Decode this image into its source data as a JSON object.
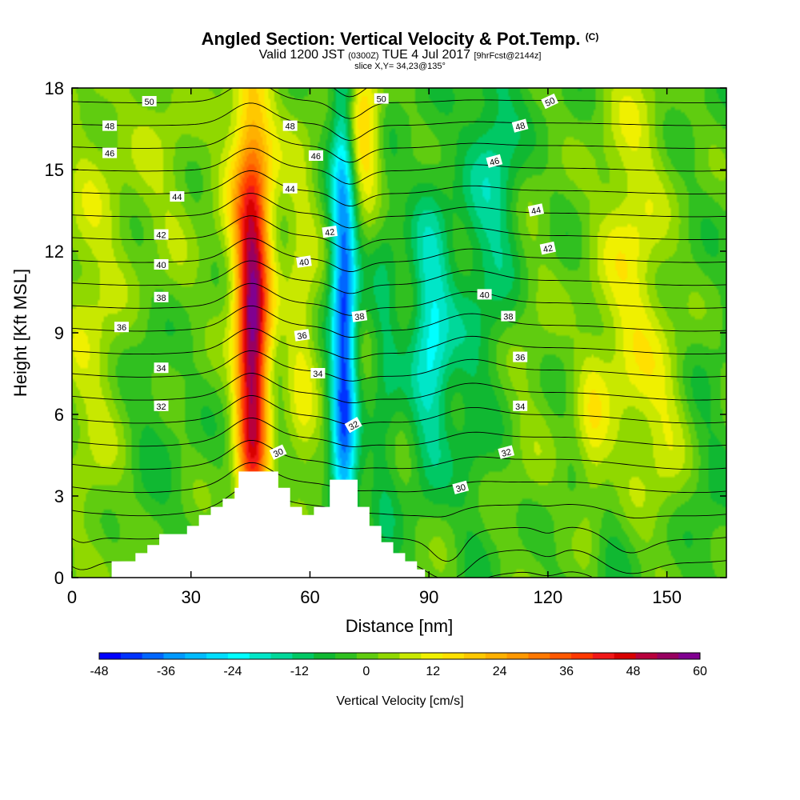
{
  "title": {
    "main": "Angled Section: Vertical Velocity & Pot.Temp.",
    "main_unit": "(C)",
    "valid_a": "Valid 1200 JST",
    "valid_b": "(0300Z)",
    "valid_c": "TUE 4 Jul 2017",
    "valid_d": "[9hrFcst@2144z]",
    "slice": "slice X,Y= 34,23@135°"
  },
  "chart_data": {
    "type": "heatmap",
    "xlabel": "Distance [nm]",
    "ylabel": "Height [Kft MSL]",
    "xlim": [
      0,
      165
    ],
    "ylim": [
      0,
      18
    ],
    "x_ticks": [
      0,
      30,
      60,
      90,
      120,
      150
    ],
    "y_ticks": [
      0,
      3,
      6,
      9,
      12,
      15,
      18
    ],
    "colorbar": {
      "label": "Vertical Velocity [cm/s]",
      "min": -48,
      "max": 60,
      "step": 4,
      "tick_values": [
        -48,
        -36,
        -24,
        -12,
        0,
        12,
        24,
        36,
        48,
        60
      ],
      "colors": [
        "#0000ff",
        "#0033ff",
        "#0066ff",
        "#0099ff",
        "#00bbff",
        "#00ddff",
        "#00ffff",
        "#00e6c8",
        "#00d89a",
        "#00c864",
        "#10b832",
        "#30c020",
        "#60cc10",
        "#90d800",
        "#c8e800",
        "#f0f000",
        "#ffe000",
        "#ffc800",
        "#ffb000",
        "#ff9800",
        "#ff7800",
        "#ff5800",
        "#ff3800",
        "#f01818",
        "#d80000",
        "#b8003c",
        "#980060",
        "#800090"
      ]
    },
    "background_field_color": "#a8dc00",
    "velocity_features": [
      {
        "x": 45.5,
        "y": 8.0,
        "sx": 2.8,
        "sy": 4.8,
        "value": 58
      },
      {
        "x": 45.0,
        "y": 14.5,
        "sx": 5.0,
        "sy": 3.5,
        "value": 20
      },
      {
        "x": 68.5,
        "y": 9.0,
        "sx": 2.2,
        "sy": 7.5,
        "value": -42
      },
      {
        "x": 73.5,
        "y": 16.5,
        "sx": 3.5,
        "sy": 2.0,
        "value": 22
      },
      {
        "x": 58.0,
        "y": 9.0,
        "sx": 3.0,
        "sy": 5.5,
        "value": 12
      },
      {
        "x": 79.0,
        "y": 8.0,
        "sx": 2.5,
        "sy": 6.0,
        "value": -8
      },
      {
        "x": 90.5,
        "y": 9.0,
        "sx": 3.5,
        "sy": 3.5,
        "value": -22
      },
      {
        "x": 107.0,
        "y": 14.5,
        "sx": 5.0,
        "sy": 4.0,
        "value": -14
      },
      {
        "x": 100.0,
        "y": 6.0,
        "sx": 4.0,
        "sy": 5.0,
        "value": -6
      },
      {
        "x": 115.0,
        "y": 9.0,
        "sx": 5.0,
        "sy": 6.0,
        "value": 5
      },
      {
        "x": 141.0,
        "y": 11.0,
        "sx": 6.0,
        "sy": 6.5,
        "value": 14
      },
      {
        "x": 131.0,
        "y": 4.5,
        "sx": 3.0,
        "sy": 3.0,
        "value": 12
      },
      {
        "x": 5.0,
        "y": 10.0,
        "sx": 6.0,
        "sy": 7.0,
        "value": 10
      },
      {
        "x": 22.0,
        "y": 14.0,
        "sx": 6.0,
        "sy": 4.0,
        "value": 10
      },
      {
        "x": 20.0,
        "y": 9.0,
        "sx": 5.0,
        "sy": 5.0,
        "value": -6
      },
      {
        "x": 135.0,
        "y": 1.5,
        "sx": 6.0,
        "sy": 2.0,
        "value": -8
      },
      {
        "x": 160.0,
        "y": 3.0,
        "sx": 4.0,
        "sy": 4.0,
        "value": -4
      },
      {
        "x": 95.0,
        "y": 1.5,
        "sx": 4.0,
        "sy": 1.8,
        "value": 3
      },
      {
        "x": 150.0,
        "y": 5.5,
        "sx": 4.0,
        "sy": 2.5,
        "value": 8
      }
    ],
    "terrain_profile": [
      [
        0,
        0
      ],
      [
        10,
        0
      ],
      [
        10,
        0.6
      ],
      [
        16,
        0.6
      ],
      [
        16,
        0.9
      ],
      [
        19,
        0.9
      ],
      [
        19,
        1.2
      ],
      [
        22,
        1.2
      ],
      [
        22,
        1.6
      ],
      [
        29,
        1.6
      ],
      [
        29,
        1.9
      ],
      [
        32,
        1.9
      ],
      [
        32,
        2.3
      ],
      [
        35,
        2.3
      ],
      [
        35,
        2.6
      ],
      [
        38,
        2.6
      ],
      [
        38,
        2.9
      ],
      [
        41,
        2.9
      ],
      [
        41,
        3.3
      ],
      [
        42,
        3.3
      ],
      [
        42,
        3.9
      ],
      [
        52,
        3.9
      ],
      [
        52,
        3.3
      ],
      [
        55,
        3.3
      ],
      [
        55,
        2.6
      ],
      [
        58,
        2.6
      ],
      [
        58,
        2.3
      ],
      [
        61,
        2.3
      ],
      [
        61,
        2.6
      ],
      [
        65,
        2.6
      ],
      [
        65,
        3.6
      ],
      [
        72,
        3.6
      ],
      [
        72,
        2.6
      ],
      [
        75,
        2.6
      ],
      [
        75,
        1.9
      ],
      [
        78,
        1.9
      ],
      [
        78,
        1.3
      ],
      [
        81,
        1.3
      ],
      [
        81,
        0.9
      ],
      [
        84,
        0.9
      ],
      [
        84,
        0.6
      ],
      [
        87,
        0.6
      ],
      [
        87,
        0.3
      ],
      [
        89,
        0.3
      ],
      [
        89,
        0
      ]
    ],
    "theta_contours": {
      "min": 29,
      "max": 51,
      "step": 1,
      "labeled_levels": [
        30,
        32,
        34,
        36,
        38,
        40,
        42,
        44,
        46,
        48,
        50
      ]
    },
    "contour_labels": [
      {
        "text": "50",
        "x": 19.5,
        "y": 17.5,
        "angle": 0
      },
      {
        "text": "48",
        "x": 9.5,
        "y": 16.6,
        "angle": 0
      },
      {
        "text": "46",
        "x": 9.5,
        "y": 15.6,
        "angle": 0
      },
      {
        "text": "44",
        "x": 26.5,
        "y": 14.0,
        "angle": 0
      },
      {
        "text": "42",
        "x": 22.5,
        "y": 12.6,
        "angle": 0
      },
      {
        "text": "40",
        "x": 22.5,
        "y": 11.5,
        "angle": 0
      },
      {
        "text": "38",
        "x": 22.5,
        "y": 10.3,
        "angle": 0
      },
      {
        "text": "36",
        "x": 12.5,
        "y": 9.2,
        "angle": 0
      },
      {
        "text": "34",
        "x": 22.5,
        "y": 7.7,
        "angle": 0
      },
      {
        "text": "32",
        "x": 22.5,
        "y": 6.3,
        "angle": 0
      },
      {
        "text": "48",
        "x": 55.0,
        "y": 16.6,
        "angle": 0
      },
      {
        "text": "46",
        "x": 61.5,
        "y": 15.5,
        "angle": 0
      },
      {
        "text": "44",
        "x": 55.0,
        "y": 14.3,
        "angle": 0
      },
      {
        "text": "42",
        "x": 65.0,
        "y": 12.7,
        "angle": -8
      },
      {
        "text": "40",
        "x": 58.5,
        "y": 11.6,
        "angle": -8
      },
      {
        "text": "38",
        "x": 72.5,
        "y": 9.6,
        "angle": -8
      },
      {
        "text": "36",
        "x": 58.0,
        "y": 8.9,
        "angle": -8
      },
      {
        "text": "34",
        "x": 62.0,
        "y": 7.5,
        "angle": 0
      },
      {
        "text": "32",
        "x": 71.0,
        "y": 5.6,
        "angle": -30
      },
      {
        "text": "30",
        "x": 52.0,
        "y": 4.6,
        "angle": -25
      },
      {
        "text": "50",
        "x": 78.0,
        "y": 17.6,
        "angle": 0
      },
      {
        "text": "50",
        "x": 120.5,
        "y": 17.5,
        "angle": -25
      },
      {
        "text": "48",
        "x": 113.0,
        "y": 16.6,
        "angle": -15
      },
      {
        "text": "46",
        "x": 106.5,
        "y": 15.3,
        "angle": -15
      },
      {
        "text": "44",
        "x": 117.0,
        "y": 13.5,
        "angle": -12
      },
      {
        "text": "42",
        "x": 120.0,
        "y": 12.1,
        "angle": -12
      },
      {
        "text": "40",
        "x": 104.0,
        "y": 10.4,
        "angle": 0
      },
      {
        "text": "38",
        "x": 110.0,
        "y": 9.6,
        "angle": 0
      },
      {
        "text": "36",
        "x": 113.0,
        "y": 8.1,
        "angle": 0
      },
      {
        "text": "34",
        "x": 113.0,
        "y": 6.3,
        "angle": 0
      },
      {
        "text": "32",
        "x": 109.5,
        "y": 4.6,
        "angle": -15
      },
      {
        "text": "30",
        "x": 98.0,
        "y": 3.3,
        "angle": -15
      }
    ],
    "grid": false
  }
}
